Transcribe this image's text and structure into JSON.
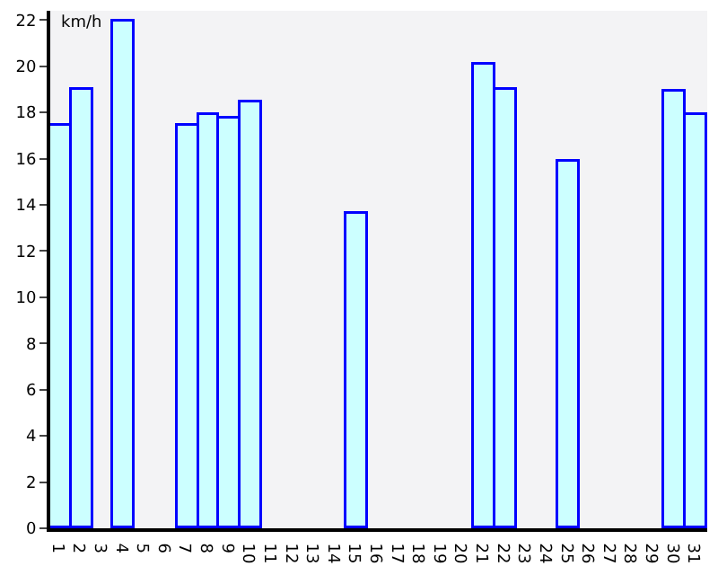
{
  "chart_data": {
    "type": "bar",
    "ylabel": "km/h",
    "categories": [
      "1",
      "2",
      "3",
      "4",
      "5",
      "6",
      "7",
      "8",
      "9",
      "10",
      "11",
      "12",
      "13",
      "14",
      "15",
      "16",
      "17",
      "18",
      "19",
      "20",
      "21",
      "22",
      "23",
      "24",
      "25",
      "26",
      "27",
      "28",
      "29",
      "30",
      "31"
    ],
    "series": [
      {
        "color": "#ccffff",
        "values": [
          17.4,
          19.0,
          null,
          21.9,
          null,
          null,
          17.4,
          17.9,
          17.7,
          18.4,
          null,
          null,
          null,
          null,
          13.6,
          null,
          null,
          null,
          null,
          null,
          20.1,
          19.0,
          null,
          null,
          15.9,
          null,
          null,
          null,
          null,
          18.9,
          17.9
        ]
      }
    ],
    "ylim": [
      0,
      22.4
    ],
    "yticks": [
      0,
      2,
      4,
      6,
      8,
      10,
      12,
      14,
      16,
      18,
      20,
      22
    ],
    "grid": false,
    "legend": false
  }
}
